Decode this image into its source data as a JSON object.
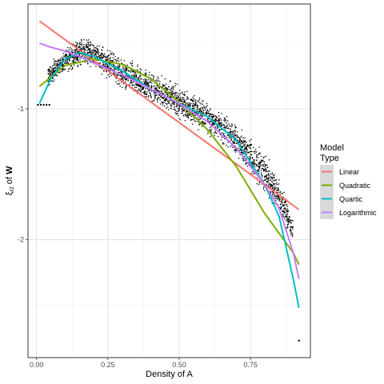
{
  "chart_data": {
    "type": "scatter",
    "xlabel": "Density of A",
    "ylabel_parts": {
      "xi": "ξ",
      "sub": "r2",
      "mid": " of ",
      "bold": "W"
    },
    "xlim": [
      -0.03,
      0.96
    ],
    "ylim": [
      -2.9,
      -0.2
    ],
    "x_ticks": [
      0.0,
      0.25,
      0.5,
      0.75
    ],
    "x_tick_labels": [
      "0.00",
      "0.25",
      "0.50",
      "0.75"
    ],
    "y_ticks": [
      -1,
      -2
    ],
    "y_tick_labels": [
      "-1",
      "-2"
    ],
    "grid": true,
    "legend": {
      "title_lines": [
        "Model",
        "Type"
      ],
      "placement": "right",
      "entries": [
        {
          "label": "Linear",
          "color": "#F8766D"
        },
        {
          "label": "Quadratic",
          "color": "#7CAE00"
        },
        {
          "label": "Quartic",
          "color": "#00BFC4"
        },
        {
          "label": "Logarithmic",
          "color": "#C77CFF"
        }
      ]
    },
    "series": [
      {
        "name": "Linear",
        "color": "#F8766D",
        "x": [
          0.01,
          0.92
        ],
        "y": [
          -0.33,
          -1.77
        ]
      },
      {
        "name": "Quadratic",
        "color": "#7CAE00",
        "x": [
          0.01,
          0.1,
          0.2,
          0.3,
          0.4,
          0.5,
          0.6,
          0.7,
          0.8,
          0.9,
          0.92
        ],
        "y": [
          -0.83,
          -0.67,
          -0.62,
          -0.66,
          -0.77,
          -0.95,
          -1.16,
          -1.44,
          -1.8,
          -2.1,
          -2.19
        ]
      },
      {
        "name": "Quartic",
        "color": "#00BFC4",
        "x": [
          0.01,
          0.05,
          0.1,
          0.15,
          0.2,
          0.3,
          0.4,
          0.5,
          0.6,
          0.7,
          0.8,
          0.85,
          0.9,
          0.92
        ],
        "y": [
          -0.96,
          -0.77,
          -0.62,
          -0.57,
          -0.6,
          -0.71,
          -0.85,
          -0.96,
          -1.06,
          -1.24,
          -1.58,
          -1.82,
          -2.3,
          -2.52
        ]
      },
      {
        "name": "Logarithmic",
        "color": "#C77CFF",
        "x": [
          0.01,
          0.05,
          0.1,
          0.15,
          0.2,
          0.3,
          0.4,
          0.5,
          0.6,
          0.7,
          0.8,
          0.85,
          0.9,
          0.92
        ],
        "y": [
          -0.5,
          -0.53,
          -0.56,
          -0.6,
          -0.65,
          -0.74,
          -0.85,
          -0.96,
          -1.1,
          -1.3,
          -1.58,
          -1.76,
          -2.1,
          -2.3
        ]
      }
    ],
    "scatter_band": {
      "x": [
        0.01,
        0.05,
        0.1,
        0.15,
        0.2,
        0.3,
        0.4,
        0.5,
        0.6,
        0.7,
        0.8,
        0.85,
        0.9
      ],
      "y_low": [
        -0.98,
        -0.84,
        -0.76,
        -0.7,
        -0.72,
        -0.88,
        -1.0,
        -1.1,
        -1.22,
        -1.38,
        -1.68,
        -1.85,
        -2.05
      ],
      "y_high": [
        -0.72,
        -0.62,
        -0.52,
        -0.42,
        -0.45,
        -0.58,
        -0.68,
        -0.8,
        -0.92,
        -1.08,
        -1.3,
        -1.48,
        -1.82
      ]
    },
    "outlier_points": [
      {
        "x": 0.92,
        "y": -2.77
      },
      {
        "x": 0.005,
        "y": -0.97
      },
      {
        "x": 0.015,
        "y": -0.97
      },
      {
        "x": 0.025,
        "y": -0.97
      },
      {
        "x": 0.035,
        "y": -0.97
      },
      {
        "x": 0.045,
        "y": -0.97
      }
    ]
  }
}
